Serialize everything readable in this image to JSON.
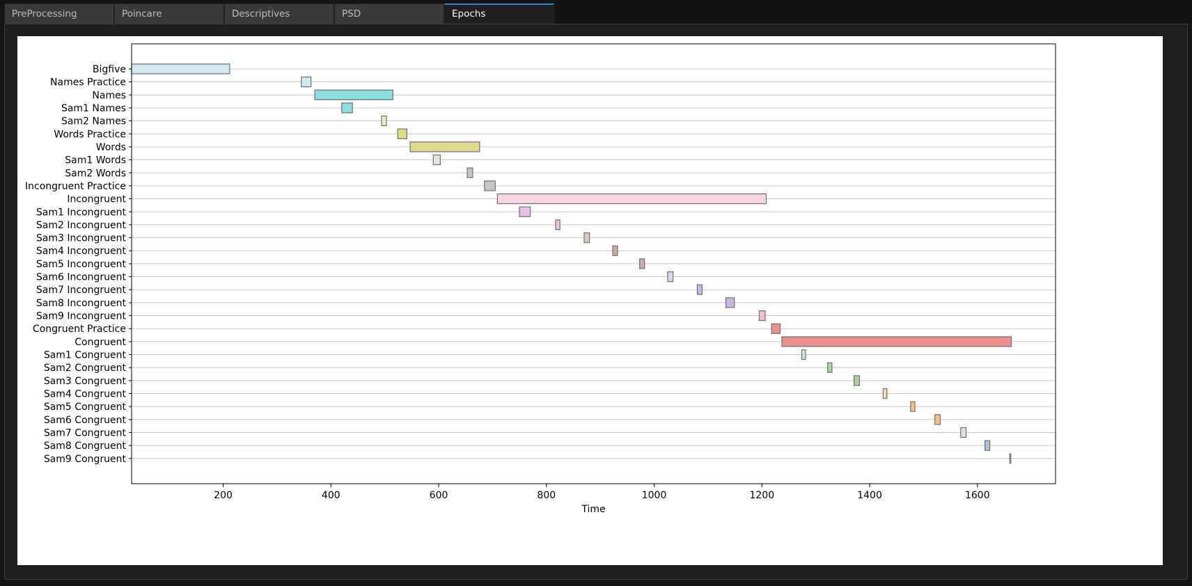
{
  "tabs": [
    {
      "label": "PreProcessing",
      "active": false
    },
    {
      "label": "Poincare",
      "active": false
    },
    {
      "label": "Descriptives",
      "active": false
    },
    {
      "label": "PSD",
      "active": false
    },
    {
      "label": "Epochs",
      "active": true
    }
  ],
  "chart_data": {
    "type": "gantt",
    "title": "",
    "xlabel": "Time",
    "ylabel": "",
    "xlim": [
      30,
      1745
    ],
    "xticks": [
      200,
      400,
      600,
      800,
      1000,
      1200,
      1400,
      1600
    ],
    "grid": "horizontal",
    "epochs": [
      {
        "label": "Bigfive",
        "start": 30,
        "end": 212,
        "color": "#cfeaf1"
      },
      {
        "label": "Names Practice",
        "start": 345,
        "end": 363,
        "color": "#cfeaf1"
      },
      {
        "label": "Names",
        "start": 370,
        "end": 515,
        "color": "#8fdce5"
      },
      {
        "label": "Sam1 Names",
        "start": 420,
        "end": 440,
        "color": "#8fdce5"
      },
      {
        "label": "Sam2 Names",
        "start": 494,
        "end": 503,
        "color": "#eaeac3"
      },
      {
        "label": "Words Practice",
        "start": 524,
        "end": 541,
        "color": "#dcdc8c"
      },
      {
        "label": "Words",
        "start": 547,
        "end": 676,
        "color": "#dcdc8c"
      },
      {
        "label": "Sam1 Words",
        "start": 590,
        "end": 603,
        "color": "#e5e5e5"
      },
      {
        "label": "Sam2 Words",
        "start": 653,
        "end": 663,
        "color": "#c7c7c7"
      },
      {
        "label": "Incongruent Practice",
        "start": 685,
        "end": 705,
        "color": "#c7c7c7"
      },
      {
        "label": "Incongruent",
        "start": 709,
        "end": 1208,
        "color": "#f8d6e6"
      },
      {
        "label": "Sam1 Incongruent",
        "start": 750,
        "end": 770,
        "color": "#efbde5"
      },
      {
        "label": "Sam2 Incongruent",
        "start": 817,
        "end": 825,
        "color": "#efbde5"
      },
      {
        "label": "Sam3 Incongruent",
        "start": 870,
        "end": 880,
        "color": "#dbc8c1"
      },
      {
        "label": "Sam4 Incongruent",
        "start": 923,
        "end": 932,
        "color": "#c9ada6"
      },
      {
        "label": "Sam5 Incongruent",
        "start": 973,
        "end": 982,
        "color": "#c9ada6"
      },
      {
        "label": "Sam6 Incongruent",
        "start": 1025,
        "end": 1035,
        "color": "#dcd4e8"
      },
      {
        "label": "Sam7 Incongruent",
        "start": 1080,
        "end": 1089,
        "color": "#c9b7df"
      },
      {
        "label": "Sam8 Incongruent",
        "start": 1133,
        "end": 1149,
        "color": "#c9b7df"
      },
      {
        "label": "Sam9 Incongruent",
        "start": 1195,
        "end": 1206,
        "color": "#f7c1c1"
      },
      {
        "label": "Congruent Practice",
        "start": 1218,
        "end": 1234,
        "color": "#eb8f8f"
      },
      {
        "label": "Congruent",
        "start": 1237,
        "end": 1663,
        "color": "#eb8f8f"
      },
      {
        "label": "Sam1 Congruent",
        "start": 1274,
        "end": 1281,
        "color": "#cde8c4"
      },
      {
        "label": "Sam2 Congruent",
        "start": 1322,
        "end": 1330,
        "color": "#a8d6a0"
      },
      {
        "label": "Sam3 Congruent",
        "start": 1371,
        "end": 1381,
        "color": "#a8d6a0"
      },
      {
        "label": "Sam4 Congruent",
        "start": 1425,
        "end": 1432,
        "color": "#fbd7b0"
      },
      {
        "label": "Sam5 Congruent",
        "start": 1476,
        "end": 1484,
        "color": "#fbbf84"
      },
      {
        "label": "Sam6 Congruent",
        "start": 1521,
        "end": 1531,
        "color": "#fbbf84"
      },
      {
        "label": "Sam7 Congruent",
        "start": 1569,
        "end": 1579,
        "color": "#d6dfea"
      },
      {
        "label": "Sam8 Congruent",
        "start": 1614,
        "end": 1623,
        "color": "#a9c3dc"
      },
      {
        "label": "Sam9 Congruent",
        "start": 1660,
        "end": 1662,
        "color": "#a9c3dc"
      }
    ]
  }
}
